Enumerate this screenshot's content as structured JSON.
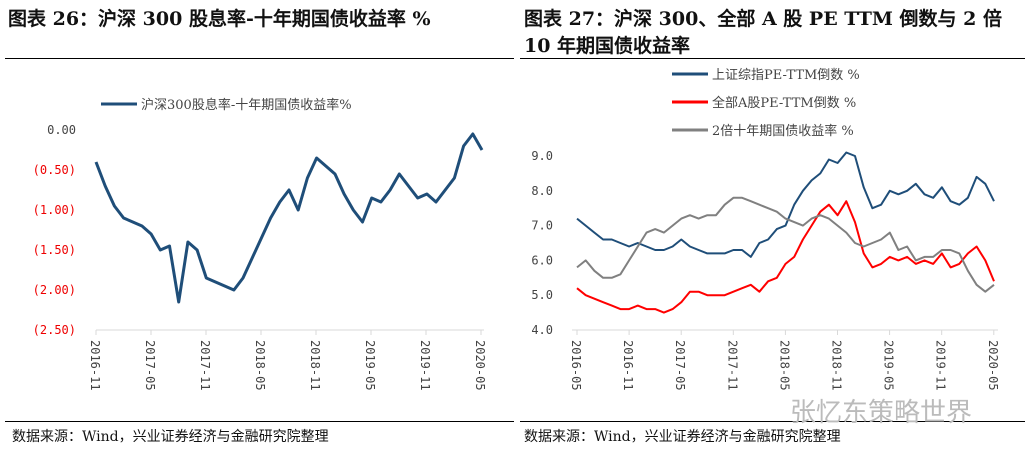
{
  "left": {
    "title": "图表 26：沪深 300 股息率-十年期国债收益率  %",
    "source": "数据来源：Wind，兴业证券经济与金融研究院整理"
  },
  "right": {
    "title_line1": "图表 27：沪深 300、全部 A 股 PE TTM 倒数与 2 倍",
    "title_line2": "10 年期国债收益率",
    "source": "数据来源：Wind，兴业证券经济与金融研究院整理"
  },
  "watermark": "张忆东策略世界",
  "chart_data": [
    {
      "type": "line",
      "title": "沪深300股息率-十年期国债收益率 %",
      "ylim": [
        -2.5,
        0
      ],
      "yticks": [
        "0.00",
        "(0.50)",
        "(1.00)",
        "(1.50)",
        "(2.00)",
        "(2.50)"
      ],
      "ytick_values": [
        0,
        -0.5,
        -1,
        -1.5,
        -2,
        -2.5
      ],
      "xticks": [
        "2016-11",
        "2017-05",
        "2017-11",
        "2018-05",
        "2018-11",
        "2019-05",
        "2019-11",
        "2020-05"
      ],
      "legend_position": "top",
      "x_start": "2016-11",
      "series": [
        {
          "name": "沪深300股息率-十年期国债收益率%",
          "color": "#1f4e79",
          "values": [
            -0.4,
            -0.7,
            -0.95,
            -1.1,
            -1.15,
            -1.2,
            -1.3,
            -1.5,
            -1.45,
            -2.15,
            -1.4,
            -1.5,
            -1.85,
            -1.9,
            -1.95,
            -2.0,
            -1.85,
            -1.6,
            -1.35,
            -1.1,
            -0.9,
            -0.75,
            -1.0,
            -0.6,
            -0.35,
            -0.45,
            -0.55,
            -0.8,
            -1.0,
            -1.15,
            -0.85,
            -0.9,
            -0.75,
            -0.55,
            -0.7,
            -0.85,
            -0.8,
            -0.9,
            -0.75,
            -0.6,
            -0.2,
            -0.05,
            -0.25
          ]
        }
      ]
    },
    {
      "type": "line",
      "ylim": [
        4,
        9.5
      ],
      "yticks": [
        "9.0",
        "8.0",
        "7.0",
        "6.0",
        "5.0",
        "4.0"
      ],
      "ytick_values": [
        9,
        8,
        7,
        6,
        5,
        4
      ],
      "xticks": [
        "2016-05",
        "2016-11",
        "2017-05",
        "2017-11",
        "2018-05",
        "2018-11",
        "2019-05",
        "2019-11",
        "2020-05"
      ],
      "legend_position": "top",
      "series": [
        {
          "name": "上证综指PE-TTM倒数 %",
          "color": "#1f4e79",
          "values": [
            7.2,
            7.0,
            6.8,
            6.6,
            6.6,
            6.5,
            6.4,
            6.5,
            6.4,
            6.3,
            6.3,
            6.4,
            6.6,
            6.4,
            6.3,
            6.2,
            6.2,
            6.2,
            6.3,
            6.3,
            6.1,
            6.5,
            6.6,
            6.9,
            7.0,
            7.6,
            8.0,
            8.3,
            8.5,
            8.9,
            8.8,
            9.1,
            9.0,
            8.1,
            7.5,
            7.6,
            8.0,
            7.9,
            8.0,
            8.2,
            7.9,
            7.8,
            8.1,
            7.7,
            7.6,
            7.8,
            8.4,
            8.2,
            7.7
          ]
        },
        {
          "name": "全部A股PE-TTM倒数 %",
          "color": "#ff0000",
          "values": [
            5.2,
            5.0,
            4.9,
            4.8,
            4.7,
            4.6,
            4.6,
            4.7,
            4.6,
            4.6,
            4.5,
            4.6,
            4.8,
            5.1,
            5.1,
            5.0,
            5.0,
            5.0,
            5.1,
            5.2,
            5.3,
            5.1,
            5.4,
            5.5,
            5.9,
            6.1,
            6.6,
            7.0,
            7.4,
            7.6,
            7.3,
            7.7,
            7.1,
            6.2,
            5.8,
            5.9,
            6.1,
            6.0,
            6.1,
            5.9,
            6.0,
            5.9,
            6.2,
            5.8,
            5.9,
            6.2,
            6.4,
            6.0,
            5.4
          ]
        },
        {
          "name": "2倍十年期国债收益率 %",
          "color": "#808080",
          "values": [
            5.8,
            6.0,
            5.7,
            5.5,
            5.5,
            5.6,
            6.0,
            6.4,
            6.8,
            6.9,
            6.8,
            7.0,
            7.2,
            7.3,
            7.2,
            7.3,
            7.3,
            7.6,
            7.8,
            7.8,
            7.7,
            7.6,
            7.5,
            7.4,
            7.2,
            7.1,
            7.0,
            7.2,
            7.3,
            7.2,
            7.0,
            6.8,
            6.5,
            6.4,
            6.5,
            6.6,
            6.8,
            6.3,
            6.4,
            6.0,
            6.1,
            6.1,
            6.3,
            6.3,
            6.2,
            5.7,
            5.3,
            5.1,
            5.3
          ]
        }
      ]
    }
  ]
}
